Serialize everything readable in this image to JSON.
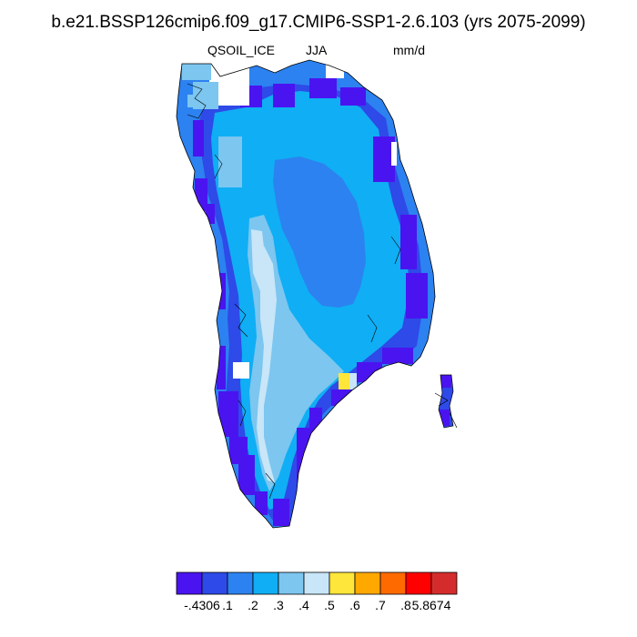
{
  "title": "b.e21.BSSP126cmip6.f09_g17.CMIP6-SSP1-2.6.103 (yrs 2075-2099)",
  "variable": "QSOIL_ICE",
  "season": "JJA",
  "units": "mm/d",
  "region": "Greenland",
  "colors": {
    "c0": "#4a14f0",
    "c1": "#2e4ae8",
    "c2": "#2c82f0",
    "c3": "#10aef4",
    "c4": "#7cc6f0",
    "c5": "#c8e6f8",
    "c6": "#ffe63a",
    "c7": "#ffa800",
    "c8": "#ff6a00",
    "c9": "#ff0000",
    "c10": "#d42c2c",
    "coast": "#000000"
  },
  "colorbar": {
    "colors": [
      "#4a14f0",
      "#2e4ae8",
      "#2c82f0",
      "#10aef4",
      "#7cc6f0",
      "#c8e6f8",
      "#ffe63a",
      "#ffa800",
      "#ff6a00",
      "#ff0000",
      "#d42c2c"
    ],
    "labels": [
      "-.4306",
      ".1",
      ".2",
      ".3",
      ".4",
      ".5",
      ".6",
      ".7",
      ".8",
      "5.8674"
    ],
    "min": -0.4306,
    "max": 5.8674
  }
}
